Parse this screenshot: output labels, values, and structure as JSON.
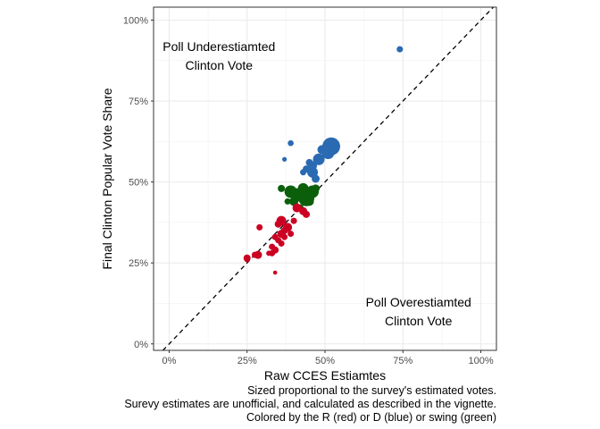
{
  "chart_data": {
    "type": "scatter",
    "xlabel": "Raw CCES Estiamtes",
    "ylabel": "Final Clinton Popular Vote Share",
    "xlim": [
      -0.05,
      1.05
    ],
    "ylim": [
      -0.02,
      1.04
    ],
    "x_ticks": [
      0,
      0.25,
      0.5,
      0.75,
      1.0
    ],
    "x_tick_labels": [
      "0%",
      "25%",
      "50%",
      "75%",
      "100%"
    ],
    "y_ticks": [
      0,
      0.25,
      0.5,
      0.75,
      1.0
    ],
    "y_tick_labels": [
      "0%",
      "25%",
      "50%",
      "75%",
      "100%"
    ],
    "grid": true,
    "reference_line": {
      "slope": 1,
      "intercept": 0,
      "style": "dashed"
    },
    "annotations": [
      {
        "lines": [
          "Poll Underestiamted",
          "Clinton Vote"
        ],
        "x": 0.16,
        "y": 0.89
      },
      {
        "lines": [
          "Poll Overestiamted",
          "Clinton Vote"
        ],
        "x": 0.8,
        "y": 0.1
      }
    ],
    "caption": [
      "Sized proportional to the survey's estimated votes.",
      "Surevy estimates are unofficial, and calculated as described in the vignette.",
      "Colored by the R (red) or D (blue) or swing (green)"
    ],
    "colors": {
      "R": "#cc0022",
      "D": "#2a6ab2",
      "swing": "#0b5f0b"
    },
    "points": [
      {
        "x": 0.74,
        "y": 0.91,
        "r": 3.5,
        "g": "D"
      },
      {
        "x": 0.39,
        "y": 0.62,
        "r": 3.3,
        "g": "D"
      },
      {
        "x": 0.37,
        "y": 0.57,
        "r": 2.6,
        "g": "D"
      },
      {
        "x": 0.52,
        "y": 0.61,
        "r": 10,
        "g": "D"
      },
      {
        "x": 0.51,
        "y": 0.59,
        "r": 7,
        "g": "D"
      },
      {
        "x": 0.49,
        "y": 0.6,
        "r": 5,
        "g": "D"
      },
      {
        "x": 0.48,
        "y": 0.57,
        "r": 6.5,
        "g": "D"
      },
      {
        "x": 0.46,
        "y": 0.55,
        "r": 5,
        "g": "D"
      },
      {
        "x": 0.45,
        "y": 0.56,
        "r": 4,
        "g": "D"
      },
      {
        "x": 0.44,
        "y": 0.54,
        "r": 4,
        "g": "D"
      },
      {
        "x": 0.46,
        "y": 0.53,
        "r": 6,
        "g": "D"
      },
      {
        "x": 0.47,
        "y": 0.51,
        "r": 4.5,
        "g": "D"
      },
      {
        "x": 0.43,
        "y": 0.53,
        "r": 3.5,
        "g": "D"
      },
      {
        "x": 0.36,
        "y": 0.48,
        "r": 4,
        "g": "swing"
      },
      {
        "x": 0.39,
        "y": 0.47,
        "r": 7,
        "g": "swing"
      },
      {
        "x": 0.41,
        "y": 0.46,
        "r": 7.5,
        "g": "swing"
      },
      {
        "x": 0.43,
        "y": 0.48,
        "r": 6,
        "g": "swing"
      },
      {
        "x": 0.44,
        "y": 0.45,
        "r": 9,
        "g": "swing"
      },
      {
        "x": 0.46,
        "y": 0.47,
        "r": 7,
        "g": "swing"
      },
      {
        "x": 0.47,
        "y": 0.48,
        "r": 4.5,
        "g": "swing"
      },
      {
        "x": 0.4,
        "y": 0.44,
        "r": 5,
        "g": "swing"
      },
      {
        "x": 0.42,
        "y": 0.42,
        "r": 4,
        "g": "swing"
      },
      {
        "x": 0.38,
        "y": 0.44,
        "r": 3.5,
        "g": "swing"
      },
      {
        "x": 0.45,
        "y": 0.44,
        "r": 5,
        "g": "swing"
      },
      {
        "x": 0.41,
        "y": 0.42,
        "r": 5,
        "g": "R"
      },
      {
        "x": 0.43,
        "y": 0.41,
        "r": 4.5,
        "g": "R"
      },
      {
        "x": 0.44,
        "y": 0.4,
        "r": 4,
        "g": "R"
      },
      {
        "x": 0.4,
        "y": 0.38,
        "r": 3.5,
        "g": "R"
      },
      {
        "x": 0.36,
        "y": 0.38,
        "r": 5.5,
        "g": "R"
      },
      {
        "x": 0.35,
        "y": 0.37,
        "r": 4,
        "g": "R"
      },
      {
        "x": 0.38,
        "y": 0.36,
        "r": 5,
        "g": "R"
      },
      {
        "x": 0.37,
        "y": 0.35,
        "r": 4,
        "g": "R"
      },
      {
        "x": 0.36,
        "y": 0.34,
        "r": 4.5,
        "g": "R"
      },
      {
        "x": 0.34,
        "y": 0.33,
        "r": 3.5,
        "g": "R"
      },
      {
        "x": 0.39,
        "y": 0.34,
        "r": 3.5,
        "g": "R"
      },
      {
        "x": 0.37,
        "y": 0.33,
        "r": 3.5,
        "g": "R"
      },
      {
        "x": 0.35,
        "y": 0.32,
        "r": 3.5,
        "g": "R"
      },
      {
        "x": 0.36,
        "y": 0.31,
        "r": 3.5,
        "g": "R"
      },
      {
        "x": 0.33,
        "y": 0.3,
        "r": 3.5,
        "g": "R"
      },
      {
        "x": 0.29,
        "y": 0.36,
        "r": 3.5,
        "g": "R"
      },
      {
        "x": 0.34,
        "y": 0.29,
        "r": 4,
        "g": "R"
      },
      {
        "x": 0.33,
        "y": 0.28,
        "r": 3.5,
        "g": "R"
      },
      {
        "x": 0.32,
        "y": 0.28,
        "r": 3,
        "g": "R"
      },
      {
        "x": 0.285,
        "y": 0.275,
        "r": 4.5,
        "g": "R"
      },
      {
        "x": 0.275,
        "y": 0.275,
        "r": 3.5,
        "g": "R"
      },
      {
        "x": 0.25,
        "y": 0.265,
        "r": 4,
        "g": "R"
      },
      {
        "x": 0.25,
        "y": 0.26,
        "r": 3,
        "g": "R"
      },
      {
        "x": 0.34,
        "y": 0.22,
        "r": 2.3,
        "g": "R"
      }
    ]
  }
}
